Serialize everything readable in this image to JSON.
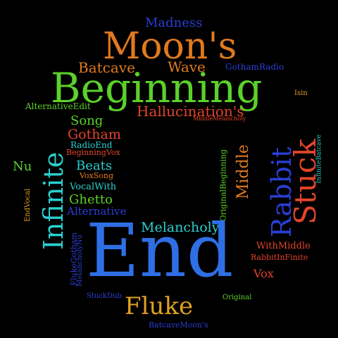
{
  "words": {
    "madness": {
      "text": "Madness",
      "color": "#2a3fd6"
    },
    "moons": {
      "text": "Moon's",
      "color": "#e07a1e"
    },
    "batcave": {
      "text": "Batcave",
      "color": "#e07a1e"
    },
    "wave": {
      "text": "Wave",
      "color": "#e07a1e"
    },
    "gothamradio": {
      "text": "GothamRadio",
      "color": "#2a3fd6"
    },
    "beginning": {
      "text": "Beginning",
      "color": "#5bd12a"
    },
    "isin": {
      "text": "Isin",
      "color": "#e0a020"
    },
    "alternativeedit": {
      "text": "AlternativeEdit",
      "color": "#5bd12a"
    },
    "hallucinations": {
      "text": "Hallucination's",
      "color": "#e2452a"
    },
    "middlemelancholy": {
      "text": "MiddleMelancholy",
      "color": "#e2452a"
    },
    "song": {
      "text": "Song",
      "color": "#5bd12a"
    },
    "gotham": {
      "text": "Gotham",
      "color": "#e2452a"
    },
    "radioend": {
      "text": "RadioEnd",
      "color": "#2bd0d0"
    },
    "beginningvox": {
      "text": "BeginningVox",
      "color": "#e2452a"
    },
    "nu": {
      "text": "Nu",
      "color": "#5bd12a"
    },
    "beats": {
      "text": "Beats",
      "color": "#2bd0d0"
    },
    "voxsong": {
      "text": "VoxSong",
      "color": "#e07a1e"
    },
    "vocalwith": {
      "text": "VocalWith",
      "color": "#2bd0d0"
    },
    "ghetto": {
      "text": "Ghetto",
      "color": "#5bd12a"
    },
    "alternative": {
      "text": "Alternative",
      "color": "#2a3fd6"
    },
    "infinite": {
      "text": "Infinite",
      "color": "#2bd0d0"
    },
    "endvocal": {
      "text": "EndVocal",
      "color": "#e0a020"
    },
    "originalbeginning": {
      "text": "OriginalBeginning",
      "color": "#5bd12a"
    },
    "middle": {
      "text": "Middle",
      "color": "#e07a1e"
    },
    "rabbit": {
      "text": "Rabbit",
      "color": "#2a3fd6"
    },
    "stuck": {
      "text": "Stuck",
      "color": "#e2452a"
    },
    "infinitebatcave": {
      "text": "InfiniteBatcave",
      "color": "#2bd0d0"
    },
    "melancholy": {
      "text": "Melancholy",
      "color": "#2bd0d0"
    },
    "end": {
      "text": "End",
      "color": "#2f6fe6"
    },
    "withmiddle": {
      "text": "WithMiddle",
      "color": "#e2452a"
    },
    "rabbitinfinite": {
      "text": "RabbitInFinite",
      "color": "#e2452a"
    },
    "vox": {
      "text": "Vox",
      "color": "#e2452a"
    },
    "flukegotham": {
      "text": "FlukeGotham",
      "color": "#2a3fd6"
    },
    "melancholynu": {
      "text": "MelancholyNu",
      "color": "#2a3fd6"
    },
    "stuckdub": {
      "text": "StuckDub",
      "color": "#2a3fd6"
    },
    "fluke": {
      "text": "Fluke",
      "color": "#e0a020"
    },
    "original": {
      "text": "Original",
      "color": "#5bd12a"
    },
    "batcavemoons": {
      "text": "BatcaveMoon's",
      "color": "#2a3fd6"
    }
  }
}
